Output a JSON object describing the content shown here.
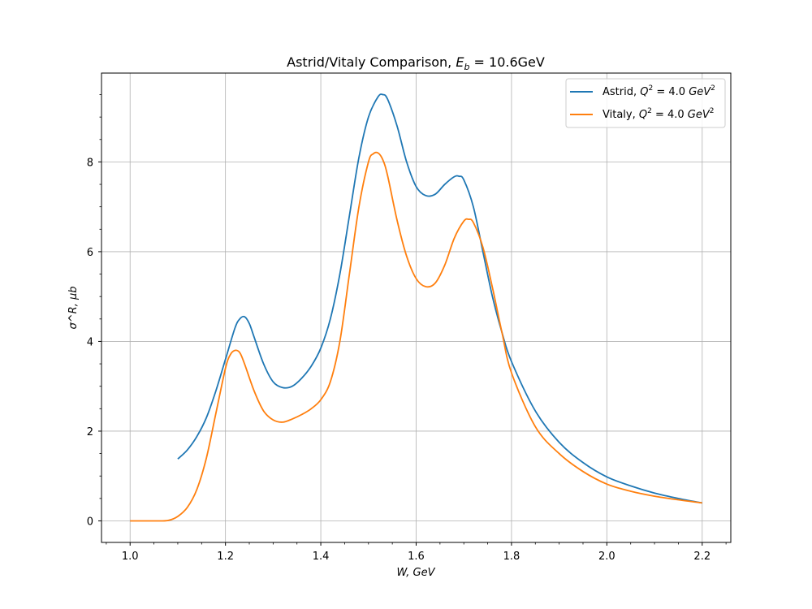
{
  "chart_data": {
    "type": "line",
    "title": "Astrid/Vitaly Comparison, E_b = 10.6GeV",
    "title_parts": {
      "text": "Astrid/Vitaly Comparison, ",
      "math_base": "E",
      "math_sub": "b",
      "math_rest": " = 10.6GeV"
    },
    "xlabel": "W, GeV",
    "ylabel": "σ^R, μb",
    "xlim": [
      0.94,
      2.26
    ],
    "ylim": [
      -0.48,
      9.98
    ],
    "xticks": [
      1.0,
      1.2,
      1.4,
      1.6,
      1.8,
      2.0,
      2.2
    ],
    "xtick_labels": [
      "1.0",
      "1.2",
      "1.4",
      "1.6",
      "1.8",
      "2.0",
      "2.2"
    ],
    "yticks": [
      0,
      2,
      4,
      6,
      8
    ],
    "ytick_labels": [
      "0",
      "2",
      "4",
      "6",
      "8"
    ],
    "grid": true,
    "legend_position": "top-right",
    "series": [
      {
        "name": "Astrid, Q^2 = 4.0 GeV^2",
        "legend_parts": {
          "prefix": "Astrid, ",
          "q": "Q",
          "sup1": "2",
          "mid": " = 4.0 ",
          "unit": "GeV",
          "sup2": "2"
        },
        "color": "#1f77b4",
        "x": [
          1.1,
          1.12,
          1.14,
          1.16,
          1.18,
          1.2,
          1.22,
          1.23,
          1.24,
          1.25,
          1.26,
          1.28,
          1.3,
          1.32,
          1.34,
          1.36,
          1.38,
          1.4,
          1.42,
          1.44,
          1.46,
          1.48,
          1.5,
          1.52,
          1.53,
          1.54,
          1.56,
          1.58,
          1.6,
          1.62,
          1.64,
          1.66,
          1.68,
          1.69,
          1.7,
          1.72,
          1.74,
          1.76,
          1.78,
          1.8,
          1.85,
          1.9,
          1.95,
          2.0,
          2.05,
          2.1,
          2.15,
          2.2
        ],
        "y": [
          1.38,
          1.58,
          1.88,
          2.3,
          2.9,
          3.6,
          4.3,
          4.5,
          4.55,
          4.4,
          4.1,
          3.5,
          3.1,
          2.97,
          3.0,
          3.18,
          3.45,
          3.85,
          4.5,
          5.5,
          6.8,
          8.1,
          9.0,
          9.45,
          9.5,
          9.4,
          8.8,
          8.0,
          7.45,
          7.25,
          7.28,
          7.5,
          7.67,
          7.68,
          7.6,
          7.0,
          6.0,
          5.0,
          4.2,
          3.55,
          2.45,
          1.75,
          1.3,
          0.98,
          0.78,
          0.62,
          0.5,
          0.4
        ]
      },
      {
        "name": "Vitaly, Q^2 = 4.0 GeV^2",
        "legend_parts": {
          "prefix": "Vitaly, ",
          "q": "Q",
          "sup1": "2",
          "mid": " = 4.0 ",
          "unit": "GeV",
          "sup2": "2"
        },
        "color": "#ff7f0e",
        "x": [
          1.0,
          1.02,
          1.04,
          1.06,
          1.08,
          1.1,
          1.12,
          1.14,
          1.16,
          1.18,
          1.2,
          1.21,
          1.22,
          1.23,
          1.24,
          1.26,
          1.28,
          1.3,
          1.32,
          1.34,
          1.36,
          1.38,
          1.4,
          1.42,
          1.44,
          1.46,
          1.48,
          1.5,
          1.51,
          1.52,
          1.53,
          1.54,
          1.56,
          1.58,
          1.6,
          1.62,
          1.64,
          1.66,
          1.68,
          1.7,
          1.71,
          1.72,
          1.74,
          1.76,
          1.78,
          1.8,
          1.85,
          1.9,
          1.95,
          2.0,
          2.05,
          2.1,
          2.15,
          2.2
        ],
        "y": [
          0.0,
          0.0,
          0.0,
          0.0,
          0.01,
          0.1,
          0.3,
          0.7,
          1.4,
          2.4,
          3.4,
          3.7,
          3.8,
          3.75,
          3.5,
          2.9,
          2.45,
          2.25,
          2.2,
          2.27,
          2.37,
          2.5,
          2.7,
          3.1,
          4.0,
          5.5,
          7.0,
          8.0,
          8.18,
          8.2,
          8.05,
          7.7,
          6.7,
          5.9,
          5.4,
          5.22,
          5.3,
          5.7,
          6.3,
          6.68,
          6.72,
          6.65,
          6.1,
          5.2,
          4.2,
          3.3,
          2.1,
          1.5,
          1.1,
          0.82,
          0.66,
          0.55,
          0.47,
          0.4
        ]
      }
    ]
  }
}
